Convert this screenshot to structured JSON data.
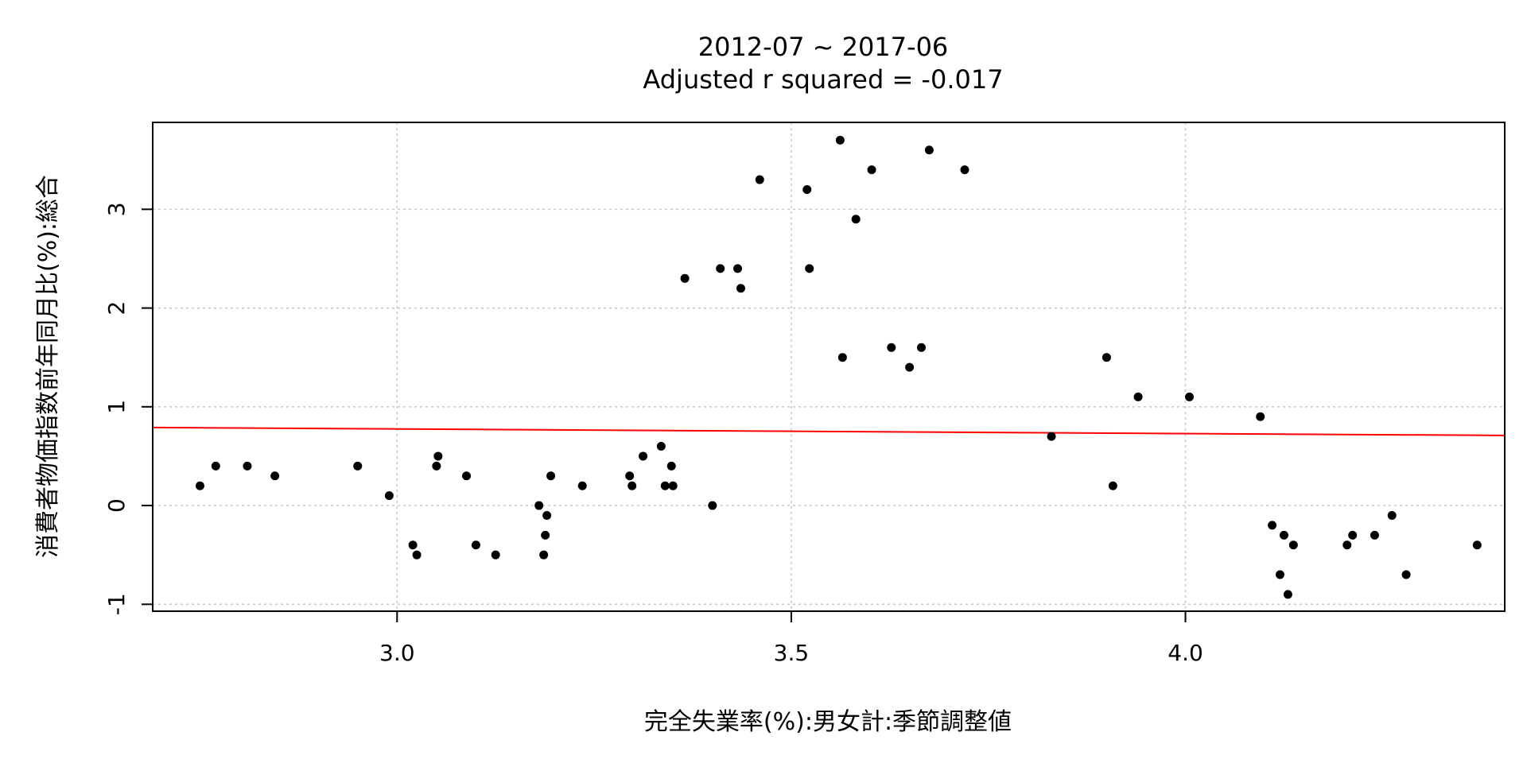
{
  "chart_data": {
    "type": "scatter",
    "title": "2012-07 ~ 2017-06",
    "subtitle": "Adjusted r squared = -0.017",
    "xlabel": "完全失業率(%):男女計:季節調整値",
    "ylabel": "消費者物価指数前年同月比(%):総合",
    "xlim": [
      2.69,
      4.405
    ],
    "ylim": [
      -1.07,
      3.88
    ],
    "x_ticks": [
      3.0,
      3.5,
      4.0
    ],
    "x_tick_labels": [
      "3.0",
      "3.5",
      "4.0"
    ],
    "y_ticks": [
      -1,
      0,
      1,
      2,
      3
    ],
    "y_tick_labels": [
      "-1",
      "0",
      "1",
      "2",
      "3"
    ],
    "grid": true,
    "point_color": "#000000",
    "fit_line_color": "#ff0000",
    "fit_line": {
      "x": [
        2.69,
        4.405
      ],
      "y": [
        0.79,
        0.71
      ]
    },
    "points": [
      {
        "x": 2.75,
        "y": 0.2
      },
      {
        "x": 2.77,
        "y": 0.4
      },
      {
        "x": 2.81,
        "y": 0.4
      },
      {
        "x": 2.845,
        "y": 0.3
      },
      {
        "x": 2.95,
        "y": 0.4
      },
      {
        "x": 2.99,
        "y": 0.1
      },
      {
        "x": 3.02,
        "y": -0.4
      },
      {
        "x": 3.025,
        "y": -0.5
      },
      {
        "x": 3.05,
        "y": 0.4
      },
      {
        "x": 3.052,
        "y": 0.5
      },
      {
        "x": 3.088,
        "y": 0.3
      },
      {
        "x": 3.1,
        "y": -0.4
      },
      {
        "x": 3.125,
        "y": -0.5
      },
      {
        "x": 3.18,
        "y": 0.0
      },
      {
        "x": 3.186,
        "y": -0.5
      },
      {
        "x": 3.188,
        "y": -0.3
      },
      {
        "x": 3.19,
        "y": -0.1
      },
      {
        "x": 3.195,
        "y": 0.3
      },
      {
        "x": 3.235,
        "y": 0.2
      },
      {
        "x": 3.295,
        "y": 0.3
      },
      {
        "x": 3.298,
        "y": 0.2
      },
      {
        "x": 3.312,
        "y": 0.5
      },
      {
        "x": 3.335,
        "y": 0.6
      },
      {
        "x": 3.34,
        "y": 0.2
      },
      {
        "x": 3.348,
        "y": 0.4
      },
      {
        "x": 3.35,
        "y": 0.2
      },
      {
        "x": 3.365,
        "y": 2.3
      },
      {
        "x": 3.4,
        "y": 0.0
      },
      {
        "x": 3.41,
        "y": 2.4
      },
      {
        "x": 3.432,
        "y": 2.4
      },
      {
        "x": 3.436,
        "y": 2.2
      },
      {
        "x": 3.46,
        "y": 3.3
      },
      {
        "x": 3.52,
        "y": 3.2
      },
      {
        "x": 3.523,
        "y": 2.4
      },
      {
        "x": 3.562,
        "y": 3.7
      },
      {
        "x": 3.565,
        "y": 1.5
      },
      {
        "x": 3.582,
        "y": 2.9
      },
      {
        "x": 3.602,
        "y": 3.4
      },
      {
        "x": 3.627,
        "y": 1.6
      },
      {
        "x": 3.65,
        "y": 1.4
      },
      {
        "x": 3.665,
        "y": 1.6
      },
      {
        "x": 3.675,
        "y": 3.6
      },
      {
        "x": 3.72,
        "y": 3.4
      },
      {
        "x": 3.83,
        "y": 0.7
      },
      {
        "x": 3.9,
        "y": 1.5
      },
      {
        "x": 3.908,
        "y": 0.2
      },
      {
        "x": 3.94,
        "y": 1.1
      },
      {
        "x": 4.005,
        "y": 1.1
      },
      {
        "x": 4.095,
        "y": 0.9
      },
      {
        "x": 4.11,
        "y": -0.2
      },
      {
        "x": 4.12,
        "y": -0.7
      },
      {
        "x": 4.125,
        "y": -0.3
      },
      {
        "x": 4.13,
        "y": -0.9
      },
      {
        "x": 4.137,
        "y": -0.4
      },
      {
        "x": 4.205,
        "y": -0.4
      },
      {
        "x": 4.212,
        "y": -0.3
      },
      {
        "x": 4.24,
        "y": -0.3
      },
      {
        "x": 4.262,
        "y": -0.1
      },
      {
        "x": 4.28,
        "y": -0.7
      },
      {
        "x": 4.37,
        "y": -0.4
      }
    ]
  }
}
